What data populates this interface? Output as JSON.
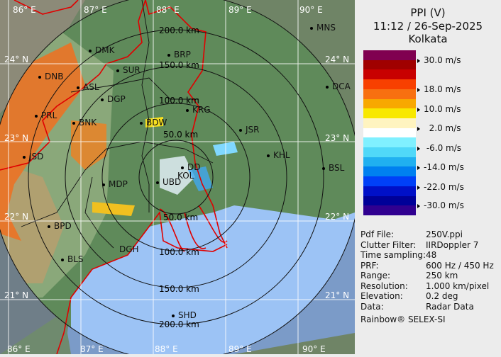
{
  "header": {
    "line1": "PPI (V)",
    "line2": "11:12 / 26-Sep-2025",
    "line3": "Kolkata"
  },
  "legend": {
    "bands": [
      "#800050",
      "#a00000",
      "#c80000",
      "#f84000",
      "#f87010",
      "#f8a800",
      "#f8e800",
      "#fff4c0",
      "#ffffff",
      "#80f0ff",
      "#50d8f8",
      "#20b0f0",
      "#0080f0",
      "#0040f8",
      "#0010c8",
      "#000098",
      "#300090"
    ],
    "ticks": [
      "30.0 m/s",
      "18.0 m/s",
      "10.0 m/s",
      "  2.0 m/s",
      " -6.0 m/s",
      "-14.0 m/s",
      "-22.0 m/s",
      "-30.0 m/s"
    ]
  },
  "info": [
    {
      "k": "Pdf File:",
      "v": "250V.ppi"
    },
    {
      "k": "Clutter Filter:",
      "v": "IIRDoppler 7"
    },
    {
      "k": "Time sampling:",
      "v": "48"
    },
    {
      "k": "PRF:",
      "v": "600 Hz / 450 Hz"
    },
    {
      "k": "Range:",
      "v": "250 km"
    },
    {
      "k": "Resolution:",
      "v": "1.000 km/pixel"
    },
    {
      "k": "Elevation:",
      "v": "0.2 deg"
    },
    {
      "k": "Data:",
      "v": "Radar Data"
    }
  ],
  "footer": "Rainbow® SELEX-SI",
  "map": {
    "lon_labels": [
      "86° E",
      "87° E",
      "88° E",
      "89° E",
      "90° E"
    ],
    "lat_labels": [
      "24° N",
      "23° N",
      "22° N",
      "21° N"
    ],
    "ring_labels": [
      "50.0 km",
      "100.0 km",
      "150.0 km",
      "200.0 km",
      "50.0 km",
      "100.0 km",
      "150.0 km",
      "200.0 km"
    ],
    "cities": [
      "DMK",
      "BRP",
      "SUR",
      "DNB",
      "ASL",
      "DGP",
      "KRG",
      "BNK",
      "PRL",
      "BDW",
      "JSR",
      "KHL",
      "JSD",
      "DD",
      "KOL",
      "UBD",
      "MDP",
      "BPD",
      "DGH",
      "BLS",
      "SHD",
      "MNS",
      "DCA",
      "BSL"
    ],
    "colors": {
      "land": "#5f8a5a",
      "sea": "#9cc3f5",
      "border": "#e00000",
      "out_of_range": "#6f8466"
    }
  }
}
